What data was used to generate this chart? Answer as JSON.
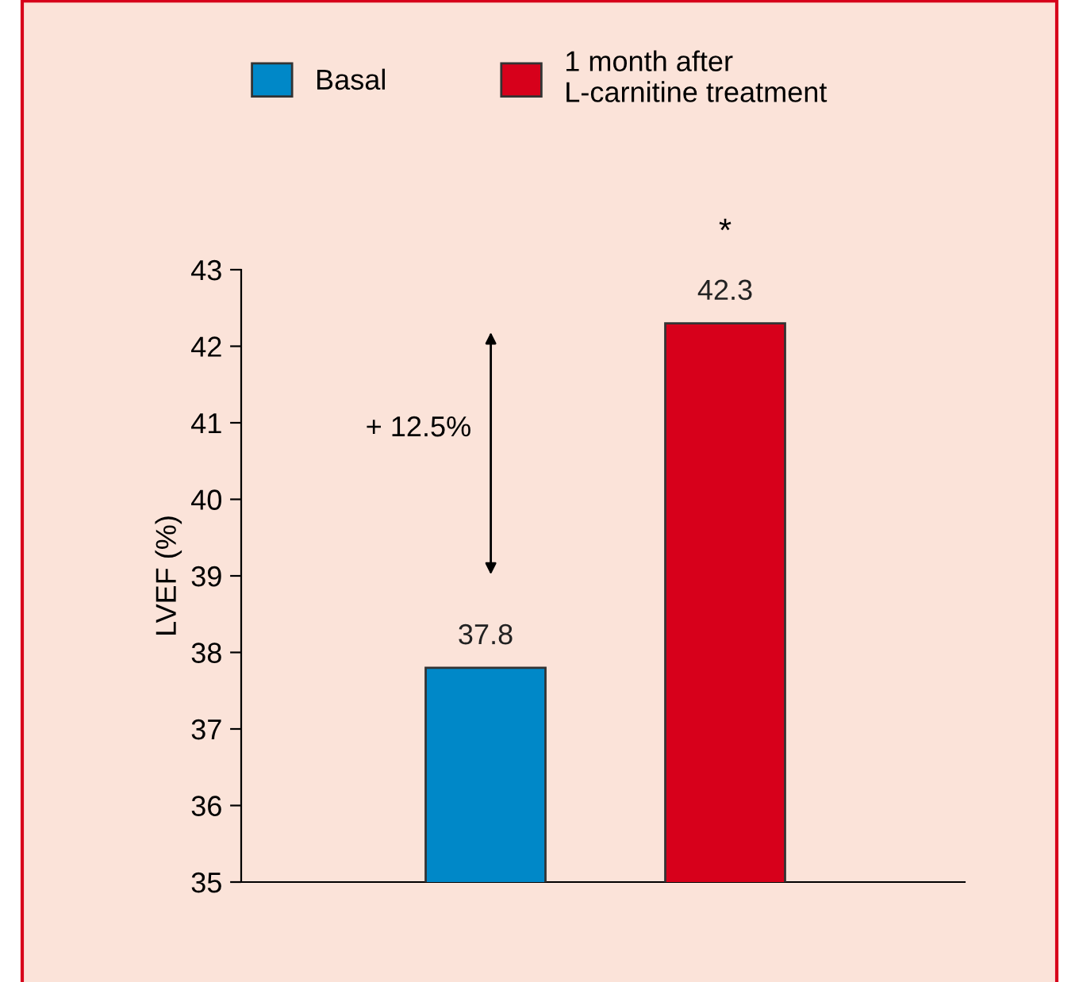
{
  "chart_data": {
    "type": "bar",
    "ylabel": "LVEF (%)",
    "categories": [
      null,
      null
    ],
    "series": [
      {
        "name": "Basal",
        "color": "#0088c8",
        "values": [
          37.8,
          null
        ]
      },
      {
        "name": "1 month after\nL-carnitine treatment",
        "color": "#d7001b",
        "values": [
          null,
          42.3
        ]
      }
    ],
    "ylim": [
      35,
      43
    ],
    "yticks": [
      35,
      36,
      37,
      38,
      39,
      40,
      41,
      42,
      43
    ],
    "data_labels": true,
    "legend": "top",
    "grid": false,
    "tick_labels": "y",
    "annotations": [
      "*",
      "+ 12.5%"
    ]
  }
}
